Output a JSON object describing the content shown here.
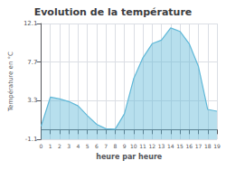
{
  "chart_data": {
    "type": "area",
    "title": "Evolution de la température",
    "xlabel": "heure par heure",
    "ylabel": "Température en °C",
    "x": [
      0,
      1,
      2,
      3,
      4,
      5,
      6,
      7,
      8,
      9,
      10,
      11,
      12,
      13,
      14,
      15,
      16,
      17,
      18,
      19
    ],
    "values": [
      0.4,
      3.7,
      3.5,
      3.2,
      2.7,
      1.6,
      0.6,
      0.1,
      0.05,
      1.8,
      5.8,
      8.2,
      9.8,
      10.2,
      11.6,
      11.2,
      9.8,
      7.2,
      2.3,
      2.1
    ],
    "color": "#60b8d8",
    "xlim": [
      0,
      19
    ],
    "xticks": [
      0,
      1,
      2,
      3,
      4,
      5,
      6,
      7,
      8,
      9,
      10,
      11,
      12,
      13,
      14,
      15,
      16,
      17,
      18,
      19
    ],
    "ylim": [
      -1.1,
      12.1
    ],
    "yticks": [
      -1.1,
      3.3,
      7.7,
      12.1
    ],
    "grid": true
  }
}
